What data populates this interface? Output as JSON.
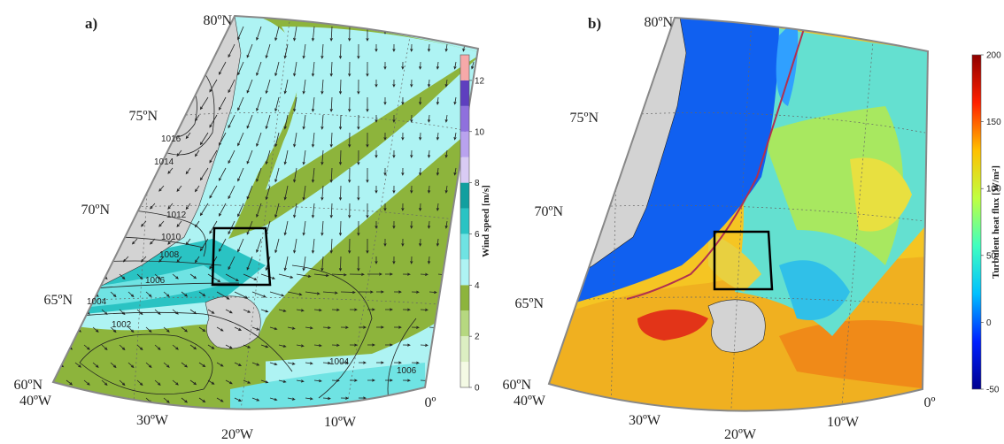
{
  "panels": [
    {
      "label": "a)",
      "lat_labels": [
        "80ºN",
        "75ºN",
        "70ºN",
        "65ºN",
        "60ºN"
      ],
      "lon_labels": [
        "40ºW",
        "30ºW",
        "20ºW",
        "10ºW",
        "0º"
      ],
      "isobar_labels": [
        "1016",
        "1014",
        "1012",
        "1010",
        "1008",
        "1006",
        "1004",
        "1002",
        "1004",
        "1006"
      ],
      "colorbar": {
        "label": "Wind speed [m/s]",
        "lim": [
          0,
          13
        ],
        "ticks": [
          0,
          2,
          4,
          6,
          8,
          10,
          12
        ],
        "colors": [
          "#f4fae4",
          "#dcefc2",
          "#b6d880",
          "#8db43c",
          "#aef3f3",
          "#6fe3e3",
          "#2ac3c3",
          "#119f9f",
          "#d9cbf4",
          "#b9a2ee",
          "#8f70dd",
          "#5e3fbf",
          "#f6a9a9"
        ]
      }
    },
    {
      "label": "b)",
      "lat_labels": [
        "80ºN",
        "75ºN",
        "70ºN",
        "65ºN",
        "60ºN"
      ],
      "lon_labels": [
        "40ºW",
        "30ºW",
        "20ºW",
        "10ºW",
        "0º"
      ],
      "colorbar": {
        "label": "Turbulent heat flux [W/m²]",
        "lim": [
          -50,
          200
        ],
        "ticks": [
          200,
          150,
          100,
          50,
          0,
          -50
        ],
        "colors": [
          "#00008f",
          "#0020ff",
          "#00c0ff",
          "#40ffc0",
          "#c0ff40",
          "#ffc000",
          "#ff2000",
          "#8f0000"
        ]
      }
    }
  ]
}
